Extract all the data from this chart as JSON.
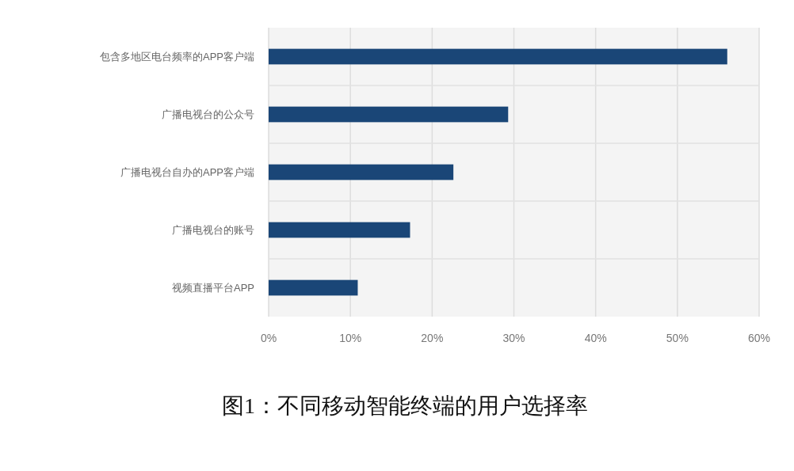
{
  "chart_data": {
    "type": "bar",
    "orientation": "horizontal",
    "title": "图1：不同移动智能终端的用户选择率",
    "categories": [
      "包含多地区电台频率的APP客户端",
      "广播电视台的公众号",
      "广播电视台自办的APP客户端",
      "广播电视台的账号",
      "视频直播平台APP"
    ],
    "values": [
      56.1,
      29.3,
      22.6,
      17.3,
      10.9
    ],
    "color": "#1a4677",
    "xlim": [
      0,
      60
    ],
    "xticks": [
      {
        "value": 0,
        "label": "0%"
      },
      {
        "value": 10,
        "label": "10%"
      },
      {
        "value": 20,
        "label": "20%"
      },
      {
        "value": 30,
        "label": "30%"
      },
      {
        "value": 40,
        "label": "40%"
      },
      {
        "value": 50,
        "label": "50%"
      },
      {
        "value": 60,
        "label": "60%"
      }
    ],
    "grid": true
  }
}
